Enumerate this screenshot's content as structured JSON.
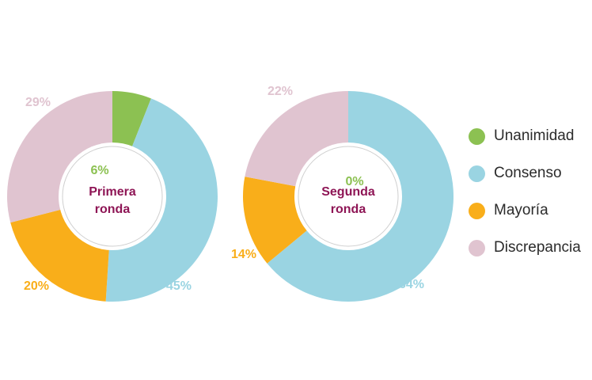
{
  "legend": [
    {
      "label": "Unanimidad",
      "color": "#8cc152"
    },
    {
      "label": "Consenso",
      "color": "#9ad4e2"
    },
    {
      "label": "Mayoría",
      "color": "#f9ae1a"
    },
    {
      "label": "Discrepancia",
      "color": "#e0c4d0"
    }
  ],
  "chart_data": [
    {
      "type": "pie",
      "center_label": [
        "Primera",
        "ronda"
      ],
      "categories": [
        "Unanimidad",
        "Consenso",
        "Mayoría",
        "Discrepancia"
      ],
      "values": [
        6,
        45,
        20,
        29
      ],
      "data_labels": [
        "6%",
        "45%",
        "20%",
        "29%"
      ]
    },
    {
      "type": "pie",
      "center_label": [
        "Segunda",
        "ronda"
      ],
      "categories": [
        "Unanimidad",
        "Consenso",
        "Mayoría",
        "Discrepancia"
      ],
      "values": [
        0,
        64,
        14,
        22
      ],
      "data_labels": [
        "0%",
        "64%",
        "14%",
        "22%"
      ]
    }
  ],
  "colors": {
    "center_text": "#8e1555",
    "inner_ring": "#cfcfcf"
  }
}
